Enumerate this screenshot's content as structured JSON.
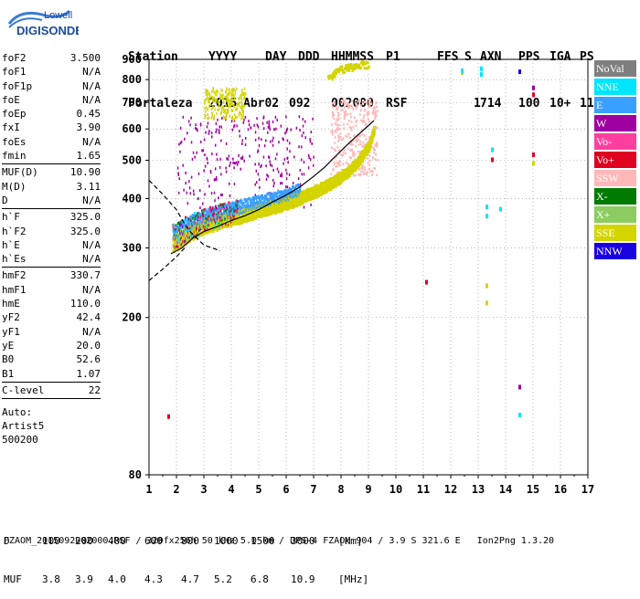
{
  "logo": {
    "line1": "Lowell",
    "line2": "DIGISONDE"
  },
  "header": {
    "row1": [
      "Station",
      "YYYY",
      "DAY",
      "DDD",
      "HHMMSS",
      "P1",
      "FFS",
      "S",
      "AXN",
      "PPS",
      "IGA",
      "PS"
    ],
    "row2": [
      "Fortaleza",
      "2015",
      "Abr02",
      "092",
      "002000",
      "RSF",
      "",
      "1",
      "714",
      "100",
      "10+",
      "11"
    ]
  },
  "params": [
    {
      "k": "foF2",
      "v": "3.500"
    },
    {
      "k": "foF1",
      "v": "N/A"
    },
    {
      "k": "foF1p",
      "v": "N/A"
    },
    {
      "k": "foE",
      "v": "N/A"
    },
    {
      "k": "foEp",
      "v": "0.45"
    },
    {
      "k": "fxI",
      "v": "3.90"
    },
    {
      "k": "foEs",
      "v": "N/A"
    },
    {
      "k": "fmin",
      "v": "1.65"
    },
    {
      "sep": true
    },
    {
      "k": "MUF(D)",
      "v": "10.90"
    },
    {
      "k": "M(D)",
      "v": "3.11"
    },
    {
      "k": "D",
      "v": "N/A"
    },
    {
      "sep": true
    },
    {
      "k": "h`F",
      "v": "325.0"
    },
    {
      "k": "h`F2",
      "v": "325.0"
    },
    {
      "k": "h`E",
      "v": "N/A"
    },
    {
      "k": "h`Es",
      "v": "N/A"
    },
    {
      "sep": true
    },
    {
      "k": "hmF2",
      "v": "330.7"
    },
    {
      "k": "hmF1",
      "v": "N/A"
    },
    {
      "k": "hmE",
      "v": "110.0"
    },
    {
      "k": "yF2",
      "v": "42.4"
    },
    {
      "k": "yF1",
      "v": "N/A"
    },
    {
      "k": "yE",
      "v": "20.0"
    },
    {
      "k": "B0",
      "v": "52.6"
    },
    {
      "k": "B1",
      "v": "1.07"
    },
    {
      "sep": true
    },
    {
      "k": "C-level",
      "v": "22"
    },
    {
      "sep": true
    }
  ],
  "auto_lines": [
    "Auto:",
    "Artist5",
    "500200"
  ],
  "legend": [
    {
      "label": "NoVal",
      "bg": "#7f7f7f",
      "fg": "#ffffff"
    },
    {
      "label": "NNE",
      "bg": "#00e5ff",
      "fg": "#ffffff"
    },
    {
      "label": "E",
      "bg": "#3aa0ff",
      "fg": "#ffffff"
    },
    {
      "label": "W",
      "bg": "#a000a0",
      "fg": "#ffffff"
    },
    {
      "label": "Vo-",
      "bg": "#ff3fa0",
      "fg": "#ffffff"
    },
    {
      "label": "Vo+",
      "bg": "#e00020",
      "fg": "#ffffff"
    },
    {
      "label": "SSW",
      "bg": "#ffb8b8",
      "fg": "#ffffff"
    },
    {
      "label": "X-",
      "bg": "#007a00",
      "fg": "#ffffff"
    },
    {
      "label": "X+",
      "bg": "#8ccc60",
      "fg": "#ffffff"
    },
    {
      "label": "SSE",
      "bg": "#d4d400",
      "fg": "#ffffff"
    },
    {
      "label": "NNW",
      "bg": "#1a00e0",
      "fg": "#ffffff"
    }
  ],
  "footer": {
    "d_label": "D",
    "d_values": [
      "100",
      "200",
      "400",
      "600",
      "800",
      "1000",
      "1500",
      "3000"
    ],
    "d_unit": "[km]",
    "muf_label": "MUF",
    "muf_values": [
      "3.8",
      "3.9",
      "4.0",
      "4.3",
      "4.7",
      "5.2",
      "6.8",
      "10.9"
    ],
    "muf_unit": "[MHz]",
    "file_line": "FZAOM_2015092002000.RSF / 320fx256h 50 kHz 5.0 km / DPS-4 FZAOM 904 / 3.9 S 321.6 E   Ion2Png 1.3.20"
  },
  "chart_data": {
    "type": "scatter",
    "title": "",
    "xlabel": "",
    "ylabel": "",
    "xlim": [
      1,
      17
    ],
    "ylim": [
      80,
      900
    ],
    "yscale": "log",
    "xticks": [
      1,
      2,
      3,
      4,
      5,
      6,
      7,
      8,
      9,
      10,
      11,
      12,
      13,
      14,
      15,
      16,
      17
    ],
    "yticks": [
      80,
      200,
      300,
      400,
      500,
      600,
      700,
      800,
      900
    ],
    "grid": true,
    "legend_placement": "right",
    "f2_trace": [
      [
        1.8,
        290
      ],
      [
        2.2,
        300
      ],
      [
        2.6,
        318
      ],
      [
        3.0,
        330
      ],
      [
        3.5,
        340
      ],
      [
        4.0,
        352
      ],
      [
        4.5,
        362
      ],
      [
        5.0,
        375
      ],
      [
        5.5,
        392
      ],
      [
        6.0,
        408
      ],
      [
        6.5,
        428
      ],
      [
        7.0,
        455
      ],
      [
        7.4,
        480
      ],
      [
        7.8,
        512
      ],
      [
        8.2,
        545
      ],
      [
        8.6,
        578
      ],
      [
        9.0,
        612
      ],
      [
        9.2,
        630
      ]
    ],
    "f2_ordinary_edge": [
      [
        1.8,
        300
      ],
      [
        2.4,
        320
      ],
      [
        3.0,
        335
      ],
      [
        3.6,
        345
      ],
      [
        4.2,
        355
      ],
      [
        4.8,
        365
      ],
      [
        5.4,
        375
      ],
      [
        6.0,
        385
      ],
      [
        6.6,
        400
      ],
      [
        7.2,
        418
      ],
      [
        7.8,
        440
      ],
      [
        8.2,
        462
      ],
      [
        8.6,
        492
      ],
      [
        9.0,
        540
      ],
      [
        9.2,
        600
      ]
    ],
    "spread_cluster": {
      "x": [
        2.0,
        7.0
      ],
      "y": [
        330,
        650
      ],
      "series": "W"
    },
    "ssw_cluster": {
      "x": [
        7.6,
        9.3
      ],
      "y": [
        460,
        720
      ],
      "series": "SSW"
    },
    "sse_high": [
      [
        7.5,
        830
      ],
      [
        7.8,
        860
      ],
      [
        8.2,
        880
      ],
      [
        8.6,
        895
      ],
      [
        9.0,
        900
      ]
    ],
    "sse_mid": {
      "x": [
        3.0,
        4.5
      ],
      "y": [
        640,
        770
      ],
      "series": "SSE"
    },
    "scattered": [
      {
        "x": 13.1,
        "y": 850,
        "series": "NNE"
      },
      {
        "x": 13.1,
        "y": 822,
        "series": "NNE"
      },
      {
        "x": 15.0,
        "y": 760,
        "series": "W"
      },
      {
        "x": 15.0,
        "y": 730,
        "series": "Vo+"
      },
      {
        "x": 14.5,
        "y": 835,
        "series": "NNW"
      },
      {
        "x": 13.5,
        "y": 530,
        "series": "NNE"
      },
      {
        "x": 13.5,
        "y": 500,
        "series": "Vo+"
      },
      {
        "x": 15.0,
        "y": 515,
        "series": "Vo+"
      },
      {
        "x": 15.0,
        "y": 490,
        "series": "SSE"
      },
      {
        "x": 13.3,
        "y": 380,
        "series": "NNE"
      },
      {
        "x": 13.3,
        "y": 360,
        "series": "NNE"
      },
      {
        "x": 13.8,
        "y": 375,
        "series": "NNE"
      },
      {
        "x": 11.1,
        "y": 245,
        "series": "Vo+"
      },
      {
        "x": 13.3,
        "y": 240,
        "series": "SSE"
      },
      {
        "x": 13.3,
        "y": 217,
        "series": "SSE"
      },
      {
        "x": 14.5,
        "y": 133,
        "series": "W"
      },
      {
        "x": 14.5,
        "y": 113,
        "series": "NNE"
      },
      {
        "x": 1.7,
        "y": 112,
        "series": "Vo+"
      },
      {
        "x": 12.4,
        "y": 830,
        "series": "SSE"
      },
      {
        "x": 12.4,
        "y": 840,
        "series": "NNE"
      }
    ],
    "model_profile_dashed": [
      [
        1.0,
        445
      ],
      [
        1.5,
        410
      ],
      [
        2.0,
        375
      ],
      [
        2.3,
        345
      ],
      [
        2.5,
        330
      ],
      [
        2.8,
        315
      ],
      [
        3.0,
        305
      ],
      [
        3.3,
        300
      ],
      [
        3.6,
        295
      ]
    ],
    "model_profile_dashed_lower": [
      [
        1.0,
        248
      ],
      [
        1.5,
        265
      ],
      [
        2.0,
        285
      ],
      [
        2.3,
        300
      ]
    ]
  }
}
